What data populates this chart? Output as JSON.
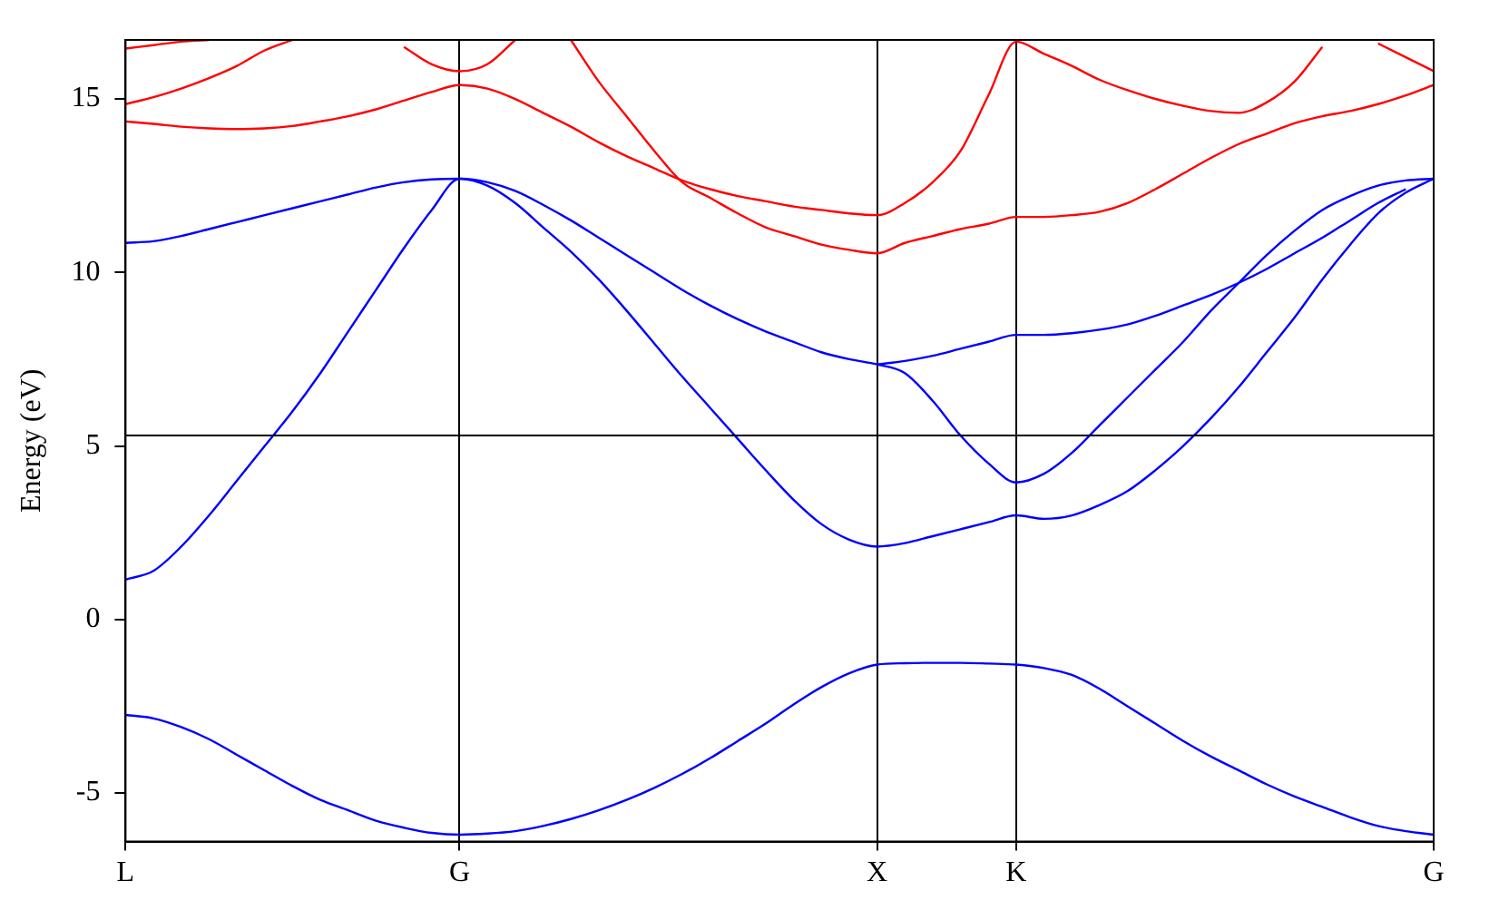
{
  "chart_data": {
    "type": "line",
    "ylabel": "Energy (eV)",
    "marker": "none",
    "line_style": "solid",
    "grid": "x",
    "legend": false,
    "categories": [
      "L",
      null,
      null,
      null,
      null,
      null,
      null,
      null,
      null,
      null,
      null,
      null,
      "G",
      null,
      null,
      null,
      null,
      null,
      null,
      null,
      null,
      null,
      null,
      null,
      null,
      null,
      null,
      "X",
      null,
      null,
      null,
      null,
      "K",
      null,
      null,
      null,
      null,
      null,
      null,
      null,
      null,
      null,
      null,
      null,
      null,
      null,
      null,
      "G"
    ],
    "ylim": [
      -6.4,
      16.7
    ],
    "yticks": [
      -5,
      0,
      5,
      10,
      15
    ],
    "ref_lines": [
      {
        "axis": "y",
        "value": 5.3,
        "color": "#000000"
      }
    ],
    "series": [
      {
        "color": "#0000ff",
        "values": [
          -2.75,
          -2.85,
          -3.1,
          -3.45,
          -3.9,
          -4.35,
          -4.8,
          -5.2,
          -5.5,
          -5.8,
          -6.0,
          -6.15,
          -6.2,
          -6.17,
          -6.1,
          -5.95,
          -5.75,
          -5.5,
          -5.2,
          -4.85,
          -4.45,
          -4.0,
          -3.5,
          -3.0,
          -2.45,
          -1.95,
          -1.55,
          -1.3,
          -1.26,
          -1.25,
          -1.25,
          -1.27,
          -1.3,
          -1.4,
          -1.6,
          -2.0,
          -2.5,
          -3.0,
          -3.5,
          -3.95,
          -4.35,
          -4.75,
          -5.1,
          -5.4,
          -5.7,
          -5.95,
          -6.1,
          -6.2
        ]
      },
      {
        "color": "#0000ff",
        "values": [
          1.15,
          1.4,
          2.1,
          3.0,
          4.0,
          5.0,
          6.0,
          7.1,
          8.3,
          9.5,
          10.7,
          11.8,
          12.7,
          12.5,
          12.0,
          11.3,
          10.6,
          9.8,
          8.9,
          7.95,
          7.0,
          6.1,
          5.2,
          4.3,
          3.45,
          2.75,
          2.3,
          2.1,
          2.2,
          2.4,
          2.6,
          2.8,
          3.0,
          2.9,
          3.0,
          3.3,
          3.7,
          4.3,
          5.0,
          5.8,
          6.7,
          7.7,
          8.7,
          9.8,
          10.8,
          11.7,
          12.3,
          12.7
        ]
      },
      {
        "color": "#0000ff",
        "values": [
          10.85,
          10.9,
          11.05,
          11.25,
          11.45,
          11.65,
          11.85,
          12.05,
          12.25,
          12.45,
          12.6,
          12.68,
          12.7,
          12.6,
          12.35,
          11.95,
          11.5,
          11.0,
          10.5,
          10.0,
          9.5,
          9.05,
          8.65,
          8.3,
          8.0,
          7.7,
          7.5,
          7.35,
          7.1,
          6.3,
          5.3,
          4.5,
          3.95,
          4.2,
          4.8,
          5.6,
          6.4,
          7.2,
          8.0,
          8.9,
          9.7,
          10.5,
          11.2,
          11.8,
          12.2,
          12.5,
          12.65,
          12.7
        ]
      },
      {
        "color": "#0000ff",
        "values": [
          null,
          null,
          null,
          null,
          null,
          null,
          null,
          null,
          null,
          null,
          null,
          null,
          null,
          null,
          null,
          null,
          null,
          null,
          null,
          null,
          null,
          null,
          null,
          null,
          null,
          null,
          null,
          7.35,
          7.45,
          7.6,
          7.8,
          8.0,
          8.2,
          8.2,
          8.25,
          8.35,
          8.5,
          8.75,
          9.05,
          9.35,
          9.7,
          10.1,
          10.55,
          11.0,
          11.5,
          12.0,
          12.4,
          null
        ]
      },
      {
        "color": "#ff0000",
        "values": [
          14.35,
          14.28,
          14.2,
          14.15,
          14.13,
          14.15,
          14.22,
          14.35,
          14.5,
          14.7,
          14.95,
          15.2,
          15.4,
          15.3,
          15.0,
          14.6,
          14.2,
          13.75,
          13.35,
          13.0,
          12.65,
          12.4,
          12.2,
          12.05,
          11.9,
          11.8,
          11.7,
          11.65,
          12.0,
          12.6,
          13.5,
          15.1,
          16.65,
          16.3,
          15.95,
          15.55,
          15.25,
          15.0,
          14.8,
          14.65,
          14.6,
          14.9,
          15.5,
          16.5,
          null,
          null,
          null,
          null
        ]
      },
      {
        "color": "#ff0000",
        "values": [
          null,
          null,
          null,
          null,
          null,
          null,
          null,
          null,
          null,
          null,
          null,
          null,
          null,
          null,
          null,
          null,
          16.7,
          15.5,
          14.5,
          13.5,
          12.6,
          12.15,
          11.7,
          11.3,
          11.05,
          10.8,
          10.65,
          10.55,
          10.85,
          11.05,
          11.25,
          11.4,
          11.6,
          11.6,
          11.65,
          11.75,
          12.0,
          12.4,
          12.85,
          13.3,
          13.7,
          14.0,
          14.3,
          14.5,
          14.65,
          14.85,
          15.1,
          15.4
        ]
      },
      {
        "color": "#ff0000",
        "values": [
          14.85,
          15.05,
          15.3,
          15.6,
          15.95,
          16.4,
          16.7,
          null,
          null,
          null,
          null,
          null,
          null,
          null,
          null,
          null,
          null,
          null,
          null,
          null,
          null,
          null,
          null,
          null,
          null,
          null,
          null,
          null,
          null,
          null,
          null,
          null,
          null,
          null,
          null,
          null,
          null,
          null,
          null,
          null,
          null,
          null,
          null,
          null,
          null,
          null,
          null,
          null
        ]
      },
      {
        "color": "#ff0000",
        "values": [
          16.45,
          16.55,
          16.65,
          16.7,
          null,
          null,
          null,
          null,
          null,
          null,
          null,
          null,
          null,
          null,
          null,
          null,
          null,
          null,
          null,
          null,
          null,
          null,
          null,
          null,
          null,
          null,
          null,
          null,
          null,
          null,
          null,
          null,
          null,
          null,
          null,
          null,
          null,
          null,
          null,
          null,
          null,
          null,
          null,
          null,
          null,
          null,
          null,
          null
        ]
      },
      {
        "color": "#ff0000",
        "values": [
          null,
          null,
          null,
          null,
          null,
          null,
          null,
          null,
          null,
          null,
          16.5,
          16.0,
          15.8,
          16.0,
          16.7,
          null,
          null,
          null,
          null,
          null,
          null,
          null,
          null,
          null,
          null,
          null,
          null,
          null,
          null,
          null,
          null,
          null,
          null,
          null,
          null,
          null,
          null,
          null,
          null,
          null,
          null,
          null,
          null,
          null,
          null,
          null,
          null,
          null
        ]
      },
      {
        "color": "#ff0000",
        "values": [
          null,
          null,
          null,
          null,
          null,
          null,
          null,
          null,
          null,
          null,
          null,
          null,
          null,
          null,
          null,
          null,
          null,
          null,
          null,
          null,
          null,
          null,
          null,
          null,
          null,
          null,
          null,
          null,
          null,
          null,
          null,
          null,
          null,
          null,
          null,
          null,
          null,
          null,
          null,
          null,
          null,
          null,
          null,
          null,
          null,
          16.6,
          16.2,
          15.8
        ]
      }
    ]
  }
}
